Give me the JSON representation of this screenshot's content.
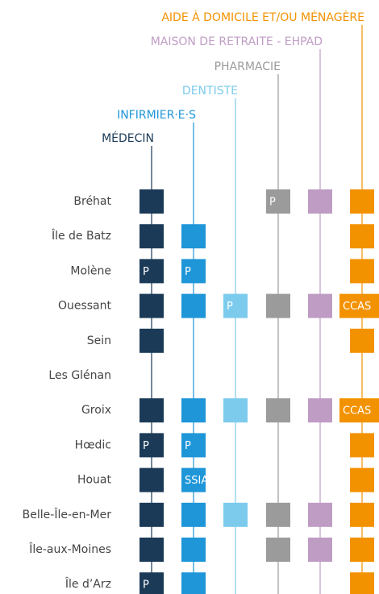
{
  "services": [
    {
      "label": "MÉDECIN",
      "color": "#1b3a57"
    },
    {
      "label": "INFIRMIER·E·S",
      "color": "#1e96d8"
    },
    {
      "label": "DENTISTE",
      "color": "#7ccbec"
    },
    {
      "label": "PHARMACIE",
      "color": "#9b9b9b"
    },
    {
      "label": "MAISON DE RETRAITE - EHPAD",
      "color": "#bf9cc4"
    },
    {
      "label": "AIDE À DOMICILE ET/OU MÉNAGÈRE",
      "color": "#f39200"
    }
  ],
  "islands": [
    {
      "name": "Bréhat",
      "cells": [
        true,
        null,
        null,
        "P",
        true,
        true
      ]
    },
    {
      "name": "Île de Batz",
      "cells": [
        true,
        true,
        null,
        null,
        null,
        true
      ]
    },
    {
      "name": "Molène",
      "cells": [
        "P",
        "P",
        null,
        null,
        null,
        true
      ]
    },
    {
      "name": "Ouessant",
      "cells": [
        true,
        true,
        "P",
        true,
        true,
        "CCAS"
      ]
    },
    {
      "name": "Sein",
      "cells": [
        true,
        null,
        null,
        null,
        null,
        true
      ]
    },
    {
      "name": "Les Glénan",
      "cells": [
        null,
        null,
        null,
        null,
        null,
        null
      ]
    },
    {
      "name": "Groix",
      "cells": [
        true,
        true,
        true,
        true,
        true,
        "CCAS"
      ]
    },
    {
      "name": "Hœdic",
      "cells": [
        "P",
        "P",
        null,
        null,
        null,
        true
      ]
    },
    {
      "name": "Houat",
      "cells": [
        true,
        "SSIAD",
        null,
        null,
        null,
        true
      ]
    },
    {
      "name": "Belle-Île-en-Mer",
      "cells": [
        true,
        true,
        true,
        true,
        true,
        true
      ]
    },
    {
      "name": "Île-aux-Moines",
      "cells": [
        true,
        true,
        null,
        true,
        true,
        true
      ]
    },
    {
      "name": "Île d’Arz",
      "cells": [
        "P",
        true,
        null,
        null,
        null,
        true
      ]
    }
  ]
}
